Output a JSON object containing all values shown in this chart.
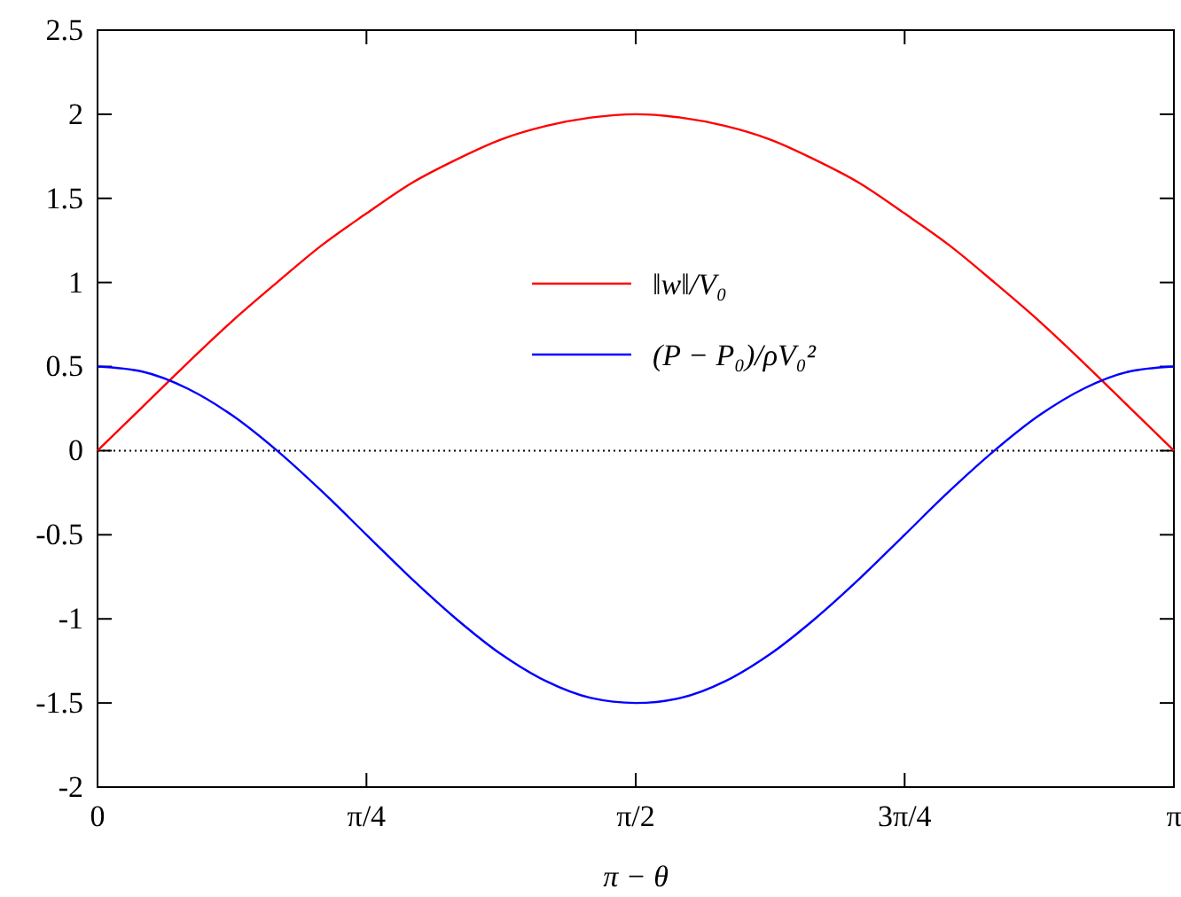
{
  "chart_data": {
    "type": "line",
    "xlabel": "π − θ",
    "x": [
      0,
      0.131,
      0.262,
      0.393,
      0.524,
      0.654,
      0.785,
      0.916,
      1.047,
      1.178,
      1.309,
      1.44,
      1.571,
      1.702,
      1.833,
      1.963,
      2.094,
      2.225,
      2.356,
      2.487,
      2.618,
      2.749,
      2.88,
      3.011,
      3.142
    ],
    "series": [
      {
        "name": "‖w‖/V₀",
        "color": "#ff0000",
        "values": [
          0,
          0.26,
          0.52,
          0.77,
          1.0,
          1.22,
          1.41,
          1.59,
          1.73,
          1.85,
          1.93,
          1.98,
          2,
          1.98,
          1.93,
          1.85,
          1.73,
          1.59,
          1.41,
          1.22,
          1.0,
          0.77,
          0.52,
          0.26,
          0
        ]
      },
      {
        "name": "(P − P₀)/ρV₀²",
        "color": "#0000ff",
        "values": [
          0.5,
          0.47,
          0.37,
          0.21,
          0,
          -0.24,
          -0.5,
          -0.76,
          -1.0,
          -1.21,
          -1.37,
          -1.47,
          -1.5,
          -1.47,
          -1.37,
          -1.21,
          -1.0,
          -0.76,
          -0.5,
          -0.24,
          0,
          0.21,
          0.37,
          0.47,
          0.5
        ]
      }
    ],
    "xlim": [
      0,
      3.142
    ],
    "xticks": [
      0,
      {
        "value": 0.785,
        "label": "π/4"
      },
      {
        "value": 1.571,
        "label": "π/2"
      },
      {
        "value": 2.356,
        "label": "3π/4"
      },
      {
        "value": 3.142,
        "label": "π"
      }
    ],
    "ylim": [
      -2,
      2.5
    ],
    "yticks": [
      -2,
      -1.5,
      -1,
      -0.5,
      0,
      0.5,
      1,
      1.5,
      2,
      2.5
    ],
    "ref_lines": [
      {
        "axis": "y",
        "value": 0,
        "color": "#000000",
        "line_style": "dotted"
      }
    ],
    "legend": "top right",
    "marker": "none",
    "line_style": "solid",
    "grid": false
  }
}
